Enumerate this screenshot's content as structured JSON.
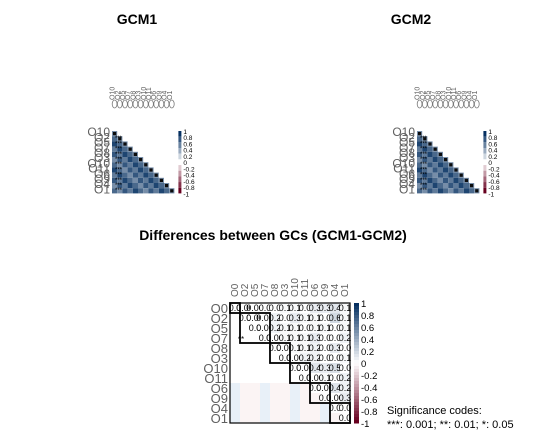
{
  "chart_data": [
    {
      "type": "heatmap",
      "title": "GCM1",
      "variant": "lower-triangle correlogram",
      "row_labels": [
        "O10",
        "O2",
        "O5",
        "O7",
        "O8",
        "O3",
        "O10",
        "O11",
        "O6",
        "O9",
        "O4",
        "O1"
      ],
      "col_labels": [
        "O10",
        "O2",
        "O5",
        "O7",
        "O8",
        "O3",
        "O10",
        "O11",
        "O6",
        "O9",
        "O4",
        "O1"
      ],
      "colorbar_labels": [
        "1",
        "0.8",
        "0.6",
        "0.4",
        "0.2",
        "0",
        "-0.2",
        "-0.4",
        "-0.6",
        "-0.8",
        "-1"
      ],
      "significance_marks": [
        "***",
        "***",
        "***",
        "***",
        "***",
        "***",
        "***",
        "***",
        "***",
        "***",
        "***"
      ]
    },
    {
      "type": "heatmap",
      "title": "GCM2",
      "variant": "lower-triangle correlogram",
      "row_labels": [
        "O10",
        "O2",
        "O5",
        "O7",
        "O8",
        "O3",
        "O10",
        "O11",
        "O6",
        "O9",
        "O4",
        "O1"
      ],
      "col_labels": [
        "O10",
        "O2",
        "O5",
        "O7",
        "O8",
        "O3",
        "O10",
        "O11",
        "O6",
        "O9",
        "O4",
        "O1"
      ],
      "colorbar_labels": [
        "1",
        "0.8",
        "0.6",
        "0.4",
        "0.2",
        "0",
        "-0.2",
        "-0.4",
        "-0.6",
        "-0.8",
        "-1"
      ],
      "significance_marks": [
        "***",
        "***",
        "***",
        "***",
        "***",
        "***",
        "***",
        "***",
        "***",
        "***",
        "***"
      ]
    },
    {
      "type": "heatmap",
      "title": "Differences between GCs (GCM1-GCM2)",
      "variant": "upper-triangle correlogram with clustering rectangles",
      "row_labels": [
        "O0",
        "O2",
        "O5",
        "O7",
        "O8",
        "O3",
        "O10",
        "O11",
        "O6",
        "O9",
        "O4",
        "O1"
      ],
      "col_labels": [
        "O0",
        "O2",
        "O5",
        "O7",
        "O8",
        "O3",
        "O10",
        "O11",
        "O6",
        "O9",
        "O4",
        "O1"
      ],
      "value_range": [
        -1,
        1
      ],
      "cell_values": [
        [
          "0.0",
          "0.00",
          "0.00",
          "0.0",
          "0.0",
          "0.1",
          "0.1",
          "0.0",
          "0.3",
          "0.3",
          "0.4",
          "0.1"
        ],
        [
          null,
          "0.0",
          "0.00",
          "0.00",
          "0.2",
          "0.0",
          "0.3",
          "0.1",
          "0.1",
          "0.0",
          "0.6",
          "0.1"
        ],
        [
          null,
          null,
          "0.0",
          "0.00",
          "0.2",
          "0.1",
          "0.1",
          "0.0",
          "0.1",
          "0.1",
          "0.0",
          "0.1"
        ],
        [
          null,
          null,
          null,
          "0.0",
          "0.00",
          "0.1",
          "0.1",
          "0.1",
          "0.3",
          "0.0",
          "0.0",
          "0.2"
        ],
        [
          null,
          null,
          null,
          null,
          "0.0",
          "0.00",
          "0.1",
          "0.1",
          "0.2",
          "0.0",
          "0.3",
          "0.0"
        ],
        [
          null,
          null,
          null,
          null,
          null,
          "0.0",
          "0.00",
          "0.2",
          "0.2",
          "0.0",
          "0.0",
          "0.1"
        ],
        [
          null,
          null,
          null,
          null,
          null,
          null,
          "0.0",
          "0.00",
          "0.4",
          "0.3",
          "0.5",
          "0.0"
        ],
        [
          null,
          null,
          null,
          null,
          null,
          null,
          null,
          "0.0",
          "0.00",
          "0.1",
          "0.0",
          "0.2"
        ],
        [
          null,
          null,
          null,
          null,
          null,
          null,
          null,
          null,
          "0.0",
          "0.00",
          "0.4",
          "0.2"
        ],
        [
          null,
          null,
          null,
          null,
          null,
          null,
          null,
          null,
          null,
          "0.0",
          "0.00",
          "0.3"
        ],
        [
          null,
          null,
          null,
          null,
          null,
          null,
          null,
          null,
          null,
          null,
          "0.0",
          "0.0"
        ],
        [
          null,
          null,
          null,
          null,
          null,
          null,
          null,
          null,
          null,
          null,
          null,
          "0.0"
        ]
      ],
      "significance_cells": [
        {
          "row": 3,
          "col": 0,
          "mark": "**"
        }
      ],
      "colorbar_labels": [
        "1",
        "0.8",
        "0.6",
        "0.4",
        "0.2",
        "0",
        "-0.2",
        "-0.4",
        "-0.6",
        "-0.8",
        "-1"
      ],
      "colors": {
        "positive": "#053061",
        "mid": "#ffffff",
        "negative": "#67001f",
        "rectangle": "#000000"
      },
      "significance_codes": {
        "title": "Significance codes:",
        "text": "***: 0.001;  **: 0.01;  *: 0.05"
      }
    }
  ]
}
